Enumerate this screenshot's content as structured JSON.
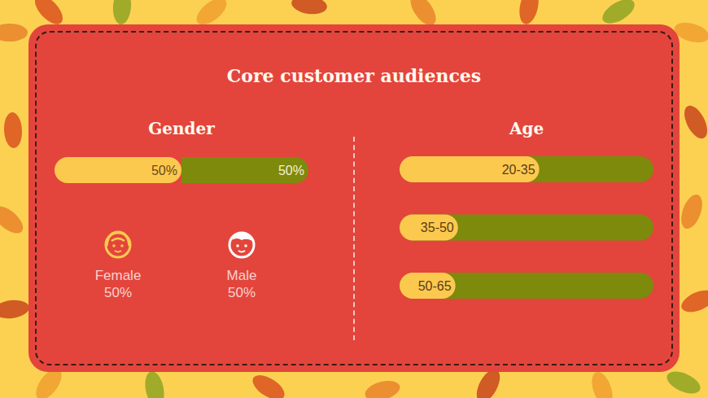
{
  "title": "Core customer audiences",
  "chart_data": [
    {
      "type": "bar",
      "title": "Gender",
      "orientation": "horizontal",
      "stacked": true,
      "data_labels": true,
      "tick_labels": false,
      "legend": "bottom",
      "categories": [
        null
      ],
      "xlim": [
        0,
        100
      ],
      "series": [
        {
          "name": "Female",
          "color": "#fcc94f",
          "values": [
            50
          ],
          "value_labels": [
            "50%"
          ]
        },
        {
          "name": "Male",
          "color": "#7d8a0c",
          "values": [
            50
          ],
          "value_labels": [
            "50%"
          ]
        }
      ]
    },
    {
      "type": "bar",
      "title": "Age",
      "orientation": "horizontal",
      "tick_labels": "y",
      "categories": [
        "20-35",
        "35-50",
        "50-65"
      ],
      "values": [
        55,
        23,
        22
      ],
      "color": "#fcc94f",
      "xlim": [
        0,
        100
      ]
    }
  ]
}
